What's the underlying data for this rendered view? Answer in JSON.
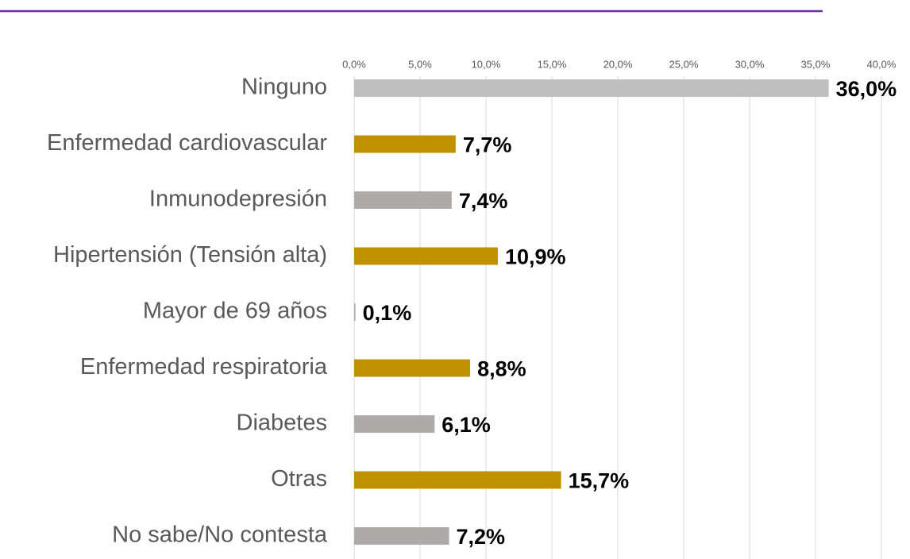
{
  "chart_data": {
    "type": "bar",
    "orientation": "horizontal",
    "categories": [
      "Ninguno",
      "Enfermedad cardiovascular",
      "Inmunodepresión",
      "Hipertensión (Tensión alta)",
      "Mayor de 69 años",
      "Enfermedad respiratoria",
      "Diabetes",
      "Otras",
      "No sabe/No contesta"
    ],
    "values": [
      36.0,
      7.7,
      7.4,
      10.9,
      0.1,
      8.8,
      6.1,
      15.7,
      7.2
    ],
    "value_labels": [
      "36,0%",
      "7,7%",
      "7,4%",
      "10,9%",
      "0,1%",
      "8,8%",
      "6,1%",
      "15,7%",
      "7,2%"
    ],
    "colors": [
      "#bfbfbf",
      "#bf9000",
      "#aeaaaa",
      "#bf9000",
      "#aeaaaa",
      "#bf9000",
      "#aeaaaa",
      "#bf9000",
      "#aeaaaa"
    ],
    "xlim": [
      0,
      40
    ],
    "xticks": [
      {
        "value": 0,
        "label": "0,0%"
      },
      {
        "value": 5,
        "label": "5,0%"
      },
      {
        "value": 10,
        "label": "10,0%"
      },
      {
        "value": 15,
        "label": "15,0%"
      },
      {
        "value": 20,
        "label": "20,0%"
      },
      {
        "value": 25,
        "label": "25,0%"
      },
      {
        "value": 30,
        "label": "30,0%"
      },
      {
        "value": 35,
        "label": "35,0%"
      },
      {
        "value": 40,
        "label": "40,0%"
      }
    ],
    "grid": true
  }
}
